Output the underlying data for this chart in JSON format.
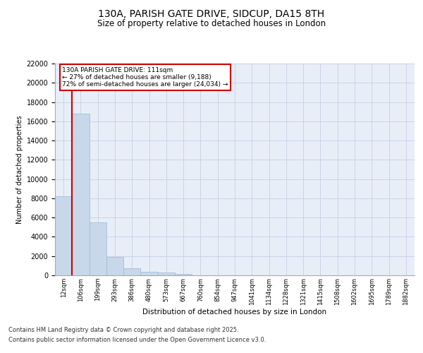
{
  "title": "130A, PARISH GATE DRIVE, SIDCUP, DA15 8TH",
  "subtitle": "Size of property relative to detached houses in London",
  "xlabel": "Distribution of detached houses by size in London",
  "ylabel": "Number of detached properties",
  "bar_color": "#c8d8ea",
  "bar_edgecolor": "#9ab8d4",
  "grid_color": "#c8d4e6",
  "background_color": "#e8eef8",
  "categories": [
    "12sqm",
    "106sqm",
    "199sqm",
    "293sqm",
    "386sqm",
    "480sqm",
    "573sqm",
    "667sqm",
    "760sqm",
    "854sqm",
    "947sqm",
    "1041sqm",
    "1134sqm",
    "1228sqm",
    "1321sqm",
    "1415sqm",
    "1508sqm",
    "1602sqm",
    "1695sqm",
    "1789sqm",
    "1882sqm"
  ],
  "values": [
    8200,
    16800,
    5500,
    1900,
    700,
    400,
    280,
    150,
    0,
    0,
    0,
    0,
    0,
    0,
    0,
    0,
    0,
    0,
    0,
    0,
    0
  ],
  "ylim": [
    0,
    22000
  ],
  "yticks": [
    0,
    2000,
    4000,
    6000,
    8000,
    10000,
    12000,
    14000,
    16000,
    18000,
    20000,
    22000
  ],
  "property_line_bin": 1,
  "annotation_text": "130A PARISH GATE DRIVE: 111sqm\n← 27% of detached houses are smaller (9,188)\n72% of semi-detached houses are larger (24,034) →",
  "red_color": "#cc0000",
  "footer_line1": "Contains HM Land Registry data © Crown copyright and database right 2025.",
  "footer_line2": "Contains public sector information licensed under the Open Government Licence v3.0."
}
